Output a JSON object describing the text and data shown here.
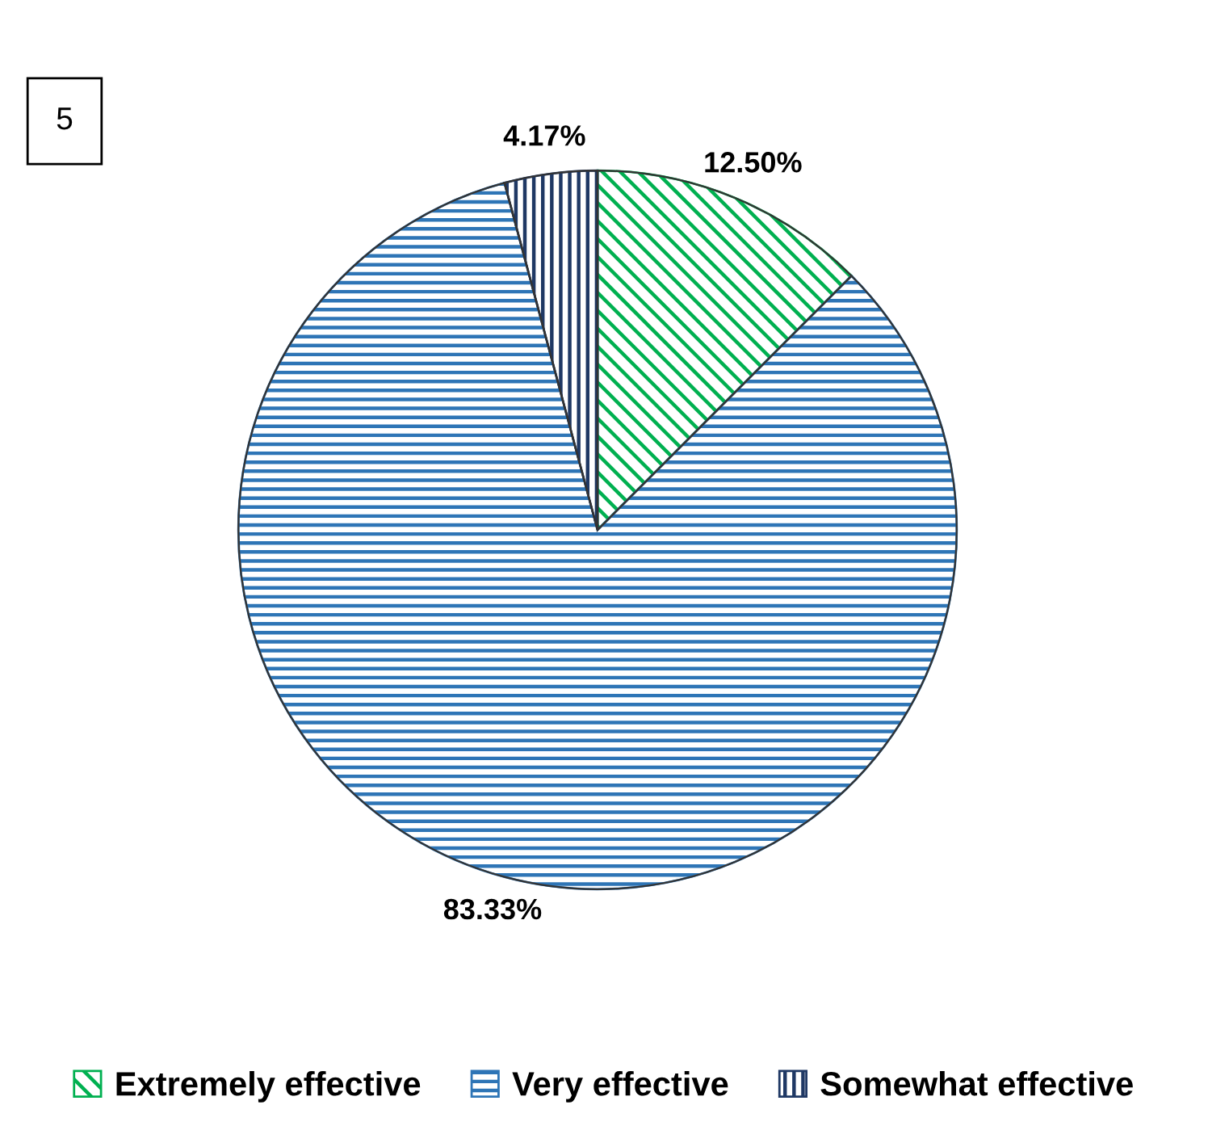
{
  "chart_data": {
    "type": "pie",
    "categories": [
      "Extremely effective",
      "Very effective",
      "Somewhat effective"
    ],
    "values": [
      12.5,
      83.33,
      4.17
    ],
    "value_labels": [
      "12.50%",
      "83.33%",
      "4.17%"
    ],
    "colors": [
      "#00b050",
      "#2e75b6",
      "#1f3864"
    ],
    "legend": "bottom",
    "annotations": [
      "5"
    ]
  }
}
